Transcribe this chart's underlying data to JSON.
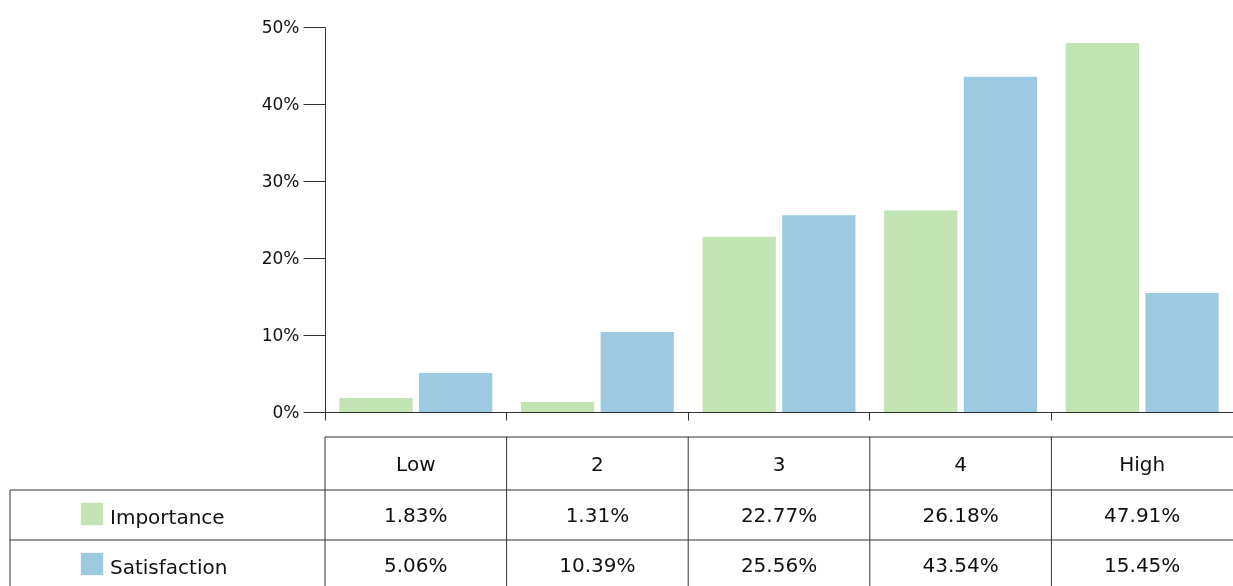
{
  "chart_data": {
    "type": "bar",
    "categories": [
      "Low",
      "2",
      "3",
      "4",
      "High"
    ],
    "series": [
      {
        "name": "Importance",
        "color": "#c2e3b4",
        "values": [
          1.83,
          1.31,
          22.77,
          26.18,
          47.91
        ],
        "value_labels": [
          "1.83%",
          "1.31%",
          "22.77%",
          "26.18%",
          "47.91%"
        ]
      },
      {
        "name": "Satisfaction",
        "color": "#9ecae1",
        "values": [
          5.06,
          10.39,
          25.56,
          43.54,
          15.45
        ],
        "value_labels": [
          "5.06%",
          "10.39%",
          "25.56%",
          "43.54%",
          "15.45%"
        ]
      }
    ],
    "ylim": [
      0,
      50
    ],
    "yticks": [
      {
        "value": 0,
        "label": "0%"
      },
      {
        "value": 10,
        "label": "10%"
      },
      {
        "value": 20,
        "label": "20%"
      },
      {
        "value": 30,
        "label": "30%"
      },
      {
        "value": 40,
        "label": "40%"
      },
      {
        "value": 50,
        "label": "50%"
      }
    ],
    "grid": false,
    "legend": "bottom"
  }
}
